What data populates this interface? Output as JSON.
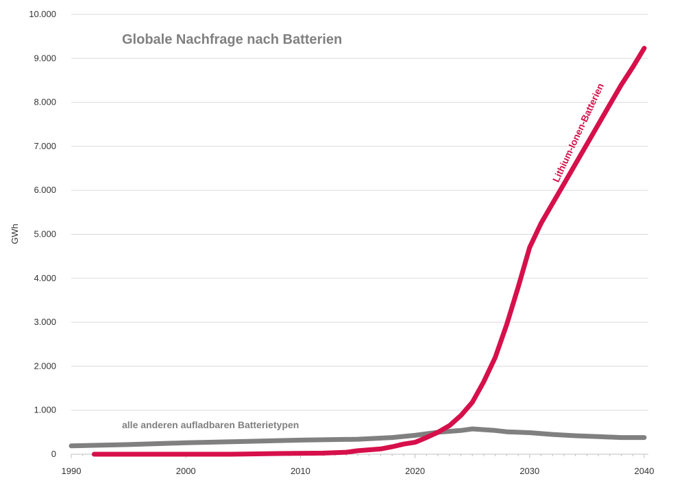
{
  "chart_data": {
    "type": "line",
    "title": "Globale Nachfrage nach Batterien",
    "xlabel": "",
    "ylabel": "GWh",
    "xlim": [
      1990,
      2040
    ],
    "ylim": [
      0,
      10000
    ],
    "x_ticks": [
      1990,
      2000,
      2010,
      2020,
      2030,
      2040
    ],
    "y_ticks": [
      0,
      1000,
      2000,
      3000,
      4000,
      5000,
      6000,
      7000,
      8000,
      9000,
      10000
    ],
    "x_tick_labels": [
      "1990",
      "2000",
      "2010",
      "2020",
      "2030",
      "2040"
    ],
    "y_tick_labels": [
      "0",
      "1.000",
      "2.000",
      "3.000",
      "4.000",
      "5.000",
      "6.000",
      "7.000",
      "8.000",
      "9.000",
      "10.000"
    ],
    "grid": true,
    "series": [
      {
        "name": "Lithium-Ionen-Batterien",
        "color": "#d6104a",
        "x": [
          1992,
          1995,
          2000,
          2004,
          2008,
          2012,
          2014,
          2015,
          2017,
          2018,
          2019,
          2020,
          2021,
          2022,
          2023,
          2024,
          2025,
          2026,
          2027,
          2028,
          2029,
          2030,
          2031,
          2032,
          2033,
          2034,
          2035,
          2036,
          2037,
          2038,
          2039,
          2040
        ],
        "y": [
          0,
          0,
          0,
          0,
          15,
          25,
          45,
          80,
          120,
          170,
          230,
          270,
          380,
          500,
          650,
          880,
          1180,
          1650,
          2200,
          2950,
          3800,
          4700,
          5250,
          5700,
          6150,
          6600,
          7050,
          7500,
          7950,
          8400,
          8800,
          9230
        ]
      },
      {
        "name": "alle anderen aufladbaren Batterietypen",
        "color": "#808080",
        "x": [
          1990,
          1995,
          2000,
          2005,
          2010,
          2015,
          2018,
          2020,
          2022,
          2024,
          2025,
          2027,
          2028,
          2030,
          2032,
          2034,
          2036,
          2038,
          2040
        ],
        "y": [
          190,
          220,
          260,
          290,
          320,
          340,
          380,
          430,
          500,
          540,
          575,
          540,
          510,
          490,
          450,
          420,
          400,
          380,
          380
        ]
      }
    ]
  }
}
